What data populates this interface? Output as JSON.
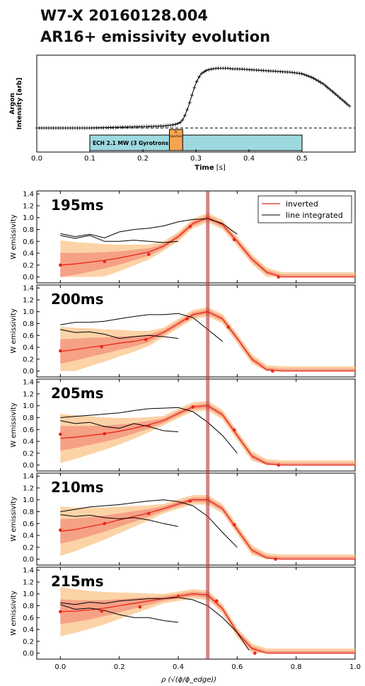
{
  "header": {
    "title_line1": "W7-X 20160128.004",
    "title_line2": "AR16+ emissivity evolution"
  },
  "chart_data": [
    {
      "type": "line",
      "ylabel": "Argon\nIntensity [arb]",
      "xlabel": "Time",
      "xlabel_unit": "[s]",
      "xlim": [
        0.0,
        0.6
      ],
      "x_ticks": [
        "0.0",
        "0.1",
        "0.2",
        "0.3",
        "0.4",
        "0.5"
      ],
      "baseline": 0.0,
      "series": [
        {
          "x": [
            0.0,
            0.05,
            0.1,
            0.15,
            0.2,
            0.24,
            0.26,
            0.27,
            0.275,
            0.28,
            0.285,
            0.29,
            0.295,
            0.3,
            0.305,
            0.31,
            0.32,
            0.33,
            0.34,
            0.35,
            0.36,
            0.37,
            0.38,
            0.4,
            0.42,
            0.44,
            0.46,
            0.48,
            0.5,
            0.52,
            0.54,
            0.56,
            0.575,
            0.59
          ],
          "values": [
            0.0,
            0.0,
            0.0,
            0.01,
            0.02,
            0.03,
            0.05,
            0.08,
            0.12,
            0.2,
            0.3,
            0.42,
            0.55,
            0.66,
            0.74,
            0.8,
            0.85,
            0.87,
            0.88,
            0.88,
            0.88,
            0.87,
            0.87,
            0.86,
            0.85,
            0.84,
            0.83,
            0.82,
            0.8,
            0.74,
            0.65,
            0.52,
            0.42,
            0.32
          ]
        }
      ],
      "annotations": [
        {
          "label": "ECH 2.1 MW (3 Gyrotrons)",
          "x_start": 0.1,
          "x_end": 0.5,
          "color": "#9ed9e0"
        },
        {
          "label": "Ar injection",
          "x_start": 0.25,
          "x_end": 0.275,
          "color": "#f5a550"
        }
      ]
    },
    {
      "type": "line",
      "ylabel": "W emissivity",
      "xlabel": "ρ (√(ϕ/ϕ_edge))",
      "xlim": [
        -0.08,
        1.0
      ],
      "ylim": [
        -0.1,
        1.45
      ],
      "marker_x": 0.5,
      "x_ticks": [
        "0.0",
        "0.2",
        "0.4",
        "0.6",
        "0.8",
        "1.0"
      ],
      "y_ticks": [
        "0.0",
        "0.2",
        "0.4",
        "0.6",
        "0.8",
        "1.0",
        "1.2",
        "1.4"
      ],
      "legend": {
        "position": "top-right",
        "entries": [
          "inverted",
          "line integrated"
        ]
      },
      "panels": [
        {
          "label": "195ms",
          "inverted_x": [
            0.0,
            0.05,
            0.1,
            0.15,
            0.2,
            0.25,
            0.3,
            0.35,
            0.4,
            0.45,
            0.5,
            0.55,
            0.6,
            0.65,
            0.7,
            0.75,
            1.0
          ],
          "inverted_y": [
            0.2,
            0.22,
            0.25,
            0.28,
            0.32,
            0.37,
            0.42,
            0.52,
            0.68,
            0.9,
            1.0,
            0.88,
            0.6,
            0.3,
            0.08,
            0.0,
            0.0
          ],
          "points_x": [
            0.0,
            0.15,
            0.3,
            0.44,
            0.59,
            0.74
          ],
          "points_y": [
            0.2,
            0.26,
            0.38,
            0.85,
            0.63,
            0.0
          ],
          "line1_x": [
            0.0,
            0.05,
            0.1,
            0.15,
            0.2,
            0.25,
            0.3,
            0.35,
            0.4,
            0.45,
            0.5,
            0.55,
            0.6
          ],
          "line1_y": [
            0.73,
            0.68,
            0.72,
            0.66,
            0.76,
            0.8,
            0.82,
            0.86,
            0.93,
            0.97,
            0.98,
            0.9,
            0.72
          ],
          "line2_x": [
            0.0,
            0.05,
            0.1,
            0.15,
            0.2,
            0.25,
            0.3,
            0.35,
            0.4
          ],
          "line2_y": [
            0.7,
            0.65,
            0.7,
            0.6,
            0.6,
            0.62,
            0.6,
            0.58,
            0.6
          ]
        },
        {
          "label": "200ms",
          "inverted_x": [
            0.0,
            0.05,
            0.1,
            0.15,
            0.2,
            0.25,
            0.3,
            0.35,
            0.4,
            0.45,
            0.5,
            0.55,
            0.6,
            0.65,
            0.7,
            0.75,
            1.0
          ],
          "inverted_y": [
            0.33,
            0.36,
            0.4,
            0.43,
            0.47,
            0.5,
            0.55,
            0.65,
            0.8,
            0.95,
            1.0,
            0.88,
            0.55,
            0.2,
            0.02,
            0.0,
            0.0
          ],
          "points_x": [
            0.0,
            0.14,
            0.29,
            0.43,
            0.57,
            0.72
          ],
          "points_y": [
            0.34,
            0.41,
            0.53,
            0.88,
            0.74,
            0.0
          ],
          "line1_x": [
            0.0,
            0.05,
            0.1,
            0.15,
            0.2,
            0.25,
            0.3,
            0.35,
            0.4,
            0.45,
            0.5,
            0.55
          ],
          "line1_y": [
            0.78,
            0.82,
            0.82,
            0.84,
            0.88,
            0.92,
            0.95,
            0.95,
            0.97,
            0.9,
            0.7,
            0.5
          ],
          "line2_x": [
            0.0,
            0.05,
            0.1,
            0.15,
            0.2,
            0.25,
            0.3,
            0.35,
            0.4
          ],
          "line2_y": [
            0.7,
            0.65,
            0.66,
            0.62,
            0.55,
            0.58,
            0.6,
            0.58,
            0.55
          ]
        },
        {
          "label": "205ms",
          "inverted_x": [
            0.0,
            0.05,
            0.1,
            0.15,
            0.2,
            0.25,
            0.3,
            0.35,
            0.4,
            0.45,
            0.5,
            0.55,
            0.6,
            0.65,
            0.7,
            0.75,
            1.0
          ],
          "inverted_y": [
            0.45,
            0.47,
            0.5,
            0.53,
            0.57,
            0.62,
            0.68,
            0.75,
            0.87,
            0.98,
            1.0,
            0.85,
            0.5,
            0.15,
            0.02,
            0.0,
            0.0
          ],
          "points_x": [
            0.0,
            0.15,
            0.3,
            0.45,
            0.59,
            0.74
          ],
          "points_y": [
            0.52,
            0.53,
            0.66,
            0.98,
            0.59,
            0.0
          ],
          "line1_x": [
            0.0,
            0.05,
            0.1,
            0.15,
            0.2,
            0.25,
            0.3,
            0.35,
            0.4,
            0.45,
            0.5,
            0.55,
            0.6
          ],
          "line1_y": [
            0.8,
            0.82,
            0.84,
            0.86,
            0.88,
            0.92,
            0.95,
            0.96,
            0.97,
            0.9,
            0.72,
            0.5,
            0.2
          ],
          "line2_x": [
            0.0,
            0.05,
            0.1,
            0.15,
            0.2,
            0.25,
            0.3,
            0.35,
            0.4
          ],
          "line2_y": [
            0.75,
            0.7,
            0.72,
            0.65,
            0.62,
            0.7,
            0.65,
            0.58,
            0.56
          ]
        },
        {
          "label": "210ms",
          "inverted_x": [
            0.0,
            0.05,
            0.1,
            0.15,
            0.2,
            0.25,
            0.3,
            0.35,
            0.4,
            0.45,
            0.5,
            0.55,
            0.6,
            0.65,
            0.7,
            0.75,
            1.0
          ],
          "inverted_y": [
            0.47,
            0.5,
            0.55,
            0.6,
            0.66,
            0.72,
            0.78,
            0.85,
            0.93,
            1.0,
            1.0,
            0.85,
            0.5,
            0.15,
            0.02,
            0.0,
            0.0
          ],
          "points_x": [
            0.0,
            0.15,
            0.3,
            0.44,
            0.59,
            0.73
          ],
          "points_y": [
            0.49,
            0.6,
            0.77,
            0.98,
            0.58,
            0.0
          ],
          "line1_x": [
            0.0,
            0.05,
            0.1,
            0.15,
            0.2,
            0.25,
            0.3,
            0.35,
            0.4,
            0.45,
            0.5,
            0.55,
            0.6
          ],
          "line1_y": [
            0.8,
            0.84,
            0.88,
            0.9,
            0.92,
            0.95,
            0.98,
            1.0,
            0.97,
            0.9,
            0.72,
            0.45,
            0.2
          ],
          "line2_x": [
            0.0,
            0.05,
            0.1,
            0.15,
            0.2,
            0.25,
            0.3,
            0.35,
            0.4
          ],
          "line2_y": [
            0.75,
            0.72,
            0.74,
            0.7,
            0.68,
            0.7,
            0.66,
            0.6,
            0.55
          ]
        },
        {
          "label": "215ms",
          "inverted_x": [
            0.0,
            0.05,
            0.1,
            0.15,
            0.2,
            0.25,
            0.3,
            0.35,
            0.4,
            0.45,
            0.5,
            0.55,
            0.6,
            0.65,
            0.7,
            0.75,
            1.0
          ],
          "inverted_y": [
            0.7,
            0.71,
            0.73,
            0.76,
            0.8,
            0.84,
            0.88,
            0.92,
            0.96,
            1.0,
            0.98,
            0.75,
            0.35,
            0.08,
            0.0,
            0.0,
            0.0
          ],
          "points_x": [
            0.0,
            0.14,
            0.27,
            0.4,
            0.53,
            0.66
          ],
          "points_y": [
            0.7,
            0.71,
            0.78,
            0.96,
            0.88,
            0.0
          ],
          "line1_x": [
            0.0,
            0.05,
            0.1,
            0.15,
            0.2,
            0.25,
            0.3,
            0.35,
            0.4,
            0.45,
            0.5,
            0.55,
            0.6,
            0.64
          ],
          "line1_y": [
            0.85,
            0.82,
            0.86,
            0.84,
            0.88,
            0.9,
            0.92,
            0.92,
            0.94,
            0.9,
            0.8,
            0.6,
            0.35,
            0.05
          ],
          "line2_x": [
            0.0,
            0.05,
            0.1,
            0.15,
            0.2,
            0.25,
            0.3,
            0.35,
            0.4
          ],
          "line2_y": [
            0.82,
            0.74,
            0.76,
            0.72,
            0.65,
            0.6,
            0.6,
            0.55,
            0.52
          ]
        }
      ]
    }
  ]
}
